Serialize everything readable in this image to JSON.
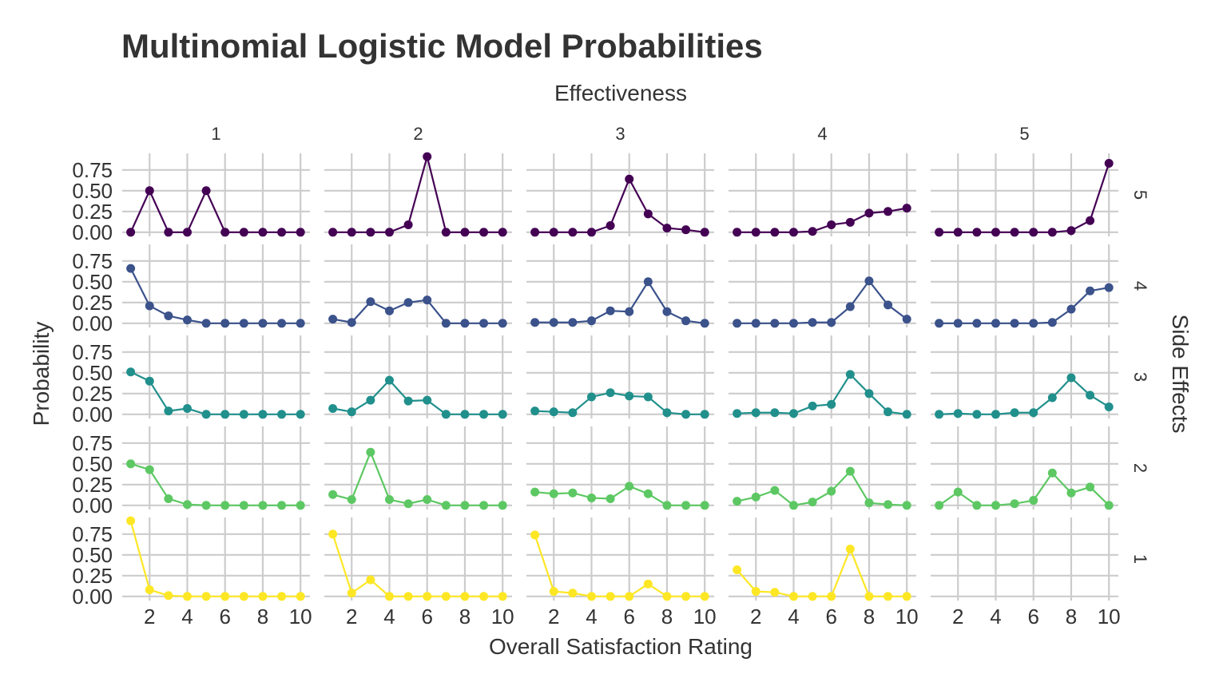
{
  "chart_data": {
    "type": "line",
    "title": "Multinomial Logistic Model Probabilities",
    "xlabel": "Overall Satisfaction Rating",
    "ylabel": "Probability",
    "facet_col_title": "Effectiveness",
    "facet_row_title": "Side Effects",
    "col_levels": [
      "1",
      "2",
      "3",
      "4",
      "5"
    ],
    "row_levels": [
      "5",
      "4",
      "3",
      "2",
      "1"
    ],
    "x": [
      1,
      2,
      3,
      4,
      5,
      6,
      7,
      8,
      9,
      10
    ],
    "x_ticks": [
      2,
      4,
      6,
      8,
      10
    ],
    "y_ticks": [
      0,
      0.25,
      0.5,
      0.75
    ],
    "y_tick_labels": [
      "0.00",
      "0.25",
      "0.50",
      "0.75"
    ],
    "xlim": [
      0.55,
      10.5
    ],
    "ylim": [
      -0.05,
      0.95
    ],
    "grid": true,
    "row_colors": {
      "5": "#440154",
      "4": "#3B528B",
      "3": "#21908C",
      "2": "#5DC863",
      "1": "#FDE725"
    },
    "panels": {
      "5": {
        "1": [
          0.0,
          0.5,
          0.0,
          0.0,
          0.5,
          0.0,
          0.0,
          0.0,
          0.0,
          0.0
        ],
        "2": [
          0.0,
          0.0,
          0.0,
          0.0,
          0.09,
          0.91,
          0.0,
          0.0,
          0.0,
          0.0
        ],
        "3": [
          0.0,
          0.0,
          0.0,
          0.0,
          0.08,
          0.64,
          0.22,
          0.05,
          0.03,
          0.0
        ],
        "4": [
          0.0,
          0.0,
          0.0,
          0.0,
          0.01,
          0.09,
          0.12,
          0.23,
          0.25,
          0.29
        ],
        "5": [
          0.0,
          0.0,
          0.0,
          0.0,
          0.0,
          0.0,
          0.0,
          0.02,
          0.14,
          0.83
        ]
      },
      "4": {
        "1": [
          0.66,
          0.21,
          0.09,
          0.04,
          0.0,
          0.0,
          0.0,
          0.0,
          0.0,
          0.0
        ],
        "2": [
          0.05,
          0.01,
          0.26,
          0.15,
          0.25,
          0.28,
          0.0,
          0.0,
          0.0,
          0.0
        ],
        "3": [
          0.01,
          0.01,
          0.01,
          0.03,
          0.15,
          0.14,
          0.5,
          0.14,
          0.03,
          0.0
        ],
        "4": [
          0.0,
          0.0,
          0.0,
          0.0,
          0.01,
          0.01,
          0.2,
          0.51,
          0.22,
          0.05
        ],
        "5": [
          0.0,
          0.0,
          0.0,
          0.0,
          0.0,
          0.0,
          0.01,
          0.17,
          0.39,
          0.43
        ]
      },
      "3": {
        "1": [
          0.51,
          0.4,
          0.04,
          0.07,
          0.0,
          0.0,
          0.0,
          0.0,
          0.0,
          0.0
        ],
        "2": [
          0.07,
          0.03,
          0.17,
          0.41,
          0.16,
          0.17,
          0.0,
          0.0,
          0.0,
          0.0
        ],
        "3": [
          0.04,
          0.03,
          0.02,
          0.21,
          0.26,
          0.22,
          0.21,
          0.02,
          0.0,
          0.0
        ],
        "4": [
          0.01,
          0.02,
          0.02,
          0.01,
          0.1,
          0.12,
          0.48,
          0.25,
          0.03,
          0.0
        ],
        "5": [
          0.0,
          0.01,
          0.0,
          0.0,
          0.02,
          0.02,
          0.2,
          0.44,
          0.23,
          0.09
        ]
      },
      "2": {
        "1": [
          0.5,
          0.43,
          0.08,
          0.01,
          0.0,
          0.0,
          0.0,
          0.0,
          0.0,
          0.0
        ],
        "2": [
          0.13,
          0.07,
          0.64,
          0.07,
          0.02,
          0.07,
          0.0,
          0.0,
          0.0,
          0.0
        ],
        "3": [
          0.16,
          0.14,
          0.15,
          0.09,
          0.08,
          0.23,
          0.14,
          0.0,
          0.0,
          0.0
        ],
        "4": [
          0.05,
          0.1,
          0.18,
          0.0,
          0.04,
          0.17,
          0.41,
          0.03,
          0.01,
          0.0
        ],
        "5": [
          0.0,
          0.16,
          0.0,
          0.0,
          0.02,
          0.06,
          0.39,
          0.15,
          0.22,
          0.0
        ]
      },
      "1": {
        "1": [
          0.91,
          0.08,
          0.01,
          0.0,
          0.0,
          0.0,
          0.0,
          0.0,
          0.0,
          0.0
        ],
        "2": [
          0.75,
          0.04,
          0.2,
          0.0,
          0.0,
          0.0,
          0.0,
          0.0,
          0.0,
          0.0
        ],
        "3": [
          0.74,
          0.06,
          0.04,
          0.0,
          0.0,
          0.0,
          0.15,
          0.0,
          0.0,
          0.0
        ],
        "4": [
          0.32,
          0.06,
          0.05,
          0.0,
          0.0,
          0.0,
          0.57,
          0.0,
          0.0,
          0.0
        ],
        "5": []
      }
    }
  }
}
